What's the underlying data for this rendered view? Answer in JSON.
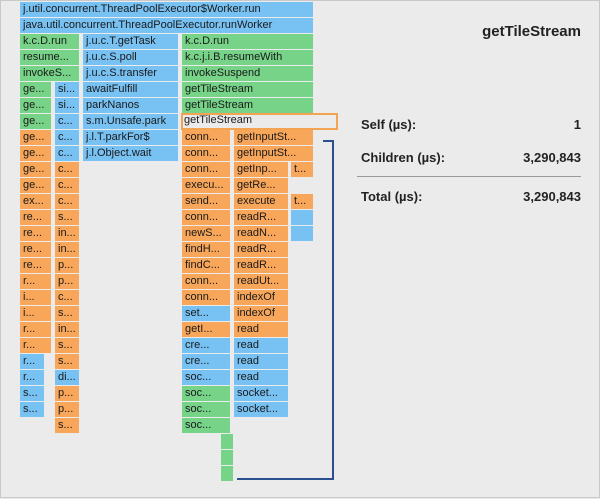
{
  "colors": {
    "blue": "#78c1f3",
    "green": "#76d388",
    "orange": "#f8a65a",
    "selected_border": "#f3a453",
    "bracket": "#2b4f8f"
  },
  "selected_function": "getTileStream",
  "stats": {
    "self_label": "Self  (µs):",
    "self_value": "1",
    "children_label": "Children (µs):",
    "children_value": "3,290,843",
    "total_label": "Total (µs):",
    "total_value": "3,290,843"
  },
  "flame_cells": [
    {
      "text": "j.util.concurrent.ThreadPoolExecutor$Worker.run",
      "color": "blue"
    },
    {
      "text": "java.util.concurrent.ThreadPoolExecutor.runWorker",
      "color": "blue"
    },
    {
      "text": "k.c.D.run",
      "color": "green"
    },
    {
      "text": "j.u.c.T.getTask",
      "color": "blue"
    },
    {
      "text": "k.c.D.run",
      "color": "green"
    },
    {
      "text": "resume...",
      "color": "green"
    },
    {
      "text": "j.u.c.S.poll",
      "color": "blue"
    },
    {
      "text": "k.c.j.i.B.resumeWith",
      "color": "green"
    },
    {
      "text": "invokeS...",
      "color": "green"
    },
    {
      "text": "j.u.c.S.transfer",
      "color": "blue"
    },
    {
      "text": "invokeSuspend",
      "color": "green"
    },
    {
      "text": "ge...",
      "color": "green"
    },
    {
      "text": "si...",
      "color": "blue"
    },
    {
      "text": "awaitFulfill",
      "color": "blue"
    },
    {
      "text": "getTileStream",
      "color": "green"
    },
    {
      "text": "ge...",
      "color": "green"
    },
    {
      "text": "si...",
      "color": "blue"
    },
    {
      "text": "parkNanos",
      "color": "blue"
    },
    {
      "text": "getTileStream",
      "color": "green"
    },
    {
      "text": "ge...",
      "color": "green"
    },
    {
      "text": "c...",
      "color": "blue"
    },
    {
      "text": "s.m.Unsafe.park",
      "color": "blue"
    },
    {
      "text": "getTileStream",
      "color": "green"
    },
    {
      "text": "ge...",
      "color": "orange"
    },
    {
      "text": "c...",
      "color": "blue"
    },
    {
      "text": "j.l.T.parkFor$",
      "color": "blue"
    },
    {
      "text": "conn...",
      "color": "orange"
    },
    {
      "text": "getInputSt...",
      "color": "orange"
    },
    {
      "text": "ge...",
      "color": "orange"
    },
    {
      "text": "c...",
      "color": "blue"
    },
    {
      "text": "j.l.Object.wait",
      "color": "blue"
    },
    {
      "text": "conn...",
      "color": "orange"
    },
    {
      "text": "getInputSt...",
      "color": "orange"
    },
    {
      "text": "ge...",
      "color": "orange"
    },
    {
      "text": "c...",
      "color": "orange"
    },
    {
      "text": "conn...",
      "color": "orange"
    },
    {
      "text": "getInp...",
      "color": "orange"
    },
    {
      "text": "t...",
      "color": "orange"
    },
    {
      "text": "ge...",
      "color": "orange"
    },
    {
      "text": "c...",
      "color": "orange"
    },
    {
      "text": "execu...",
      "color": "orange"
    },
    {
      "text": "getRe...",
      "color": "orange"
    },
    {
      "text": "ex...",
      "color": "orange"
    },
    {
      "text": "c...",
      "color": "orange"
    },
    {
      "text": "send...",
      "color": "orange"
    },
    {
      "text": "execute",
      "color": "orange"
    },
    {
      "text": "t...",
      "color": "orange"
    },
    {
      "text": "re...",
      "color": "orange"
    },
    {
      "text": "s...",
      "color": "orange"
    },
    {
      "text": "conn...",
      "color": "orange"
    },
    {
      "text": "readR...",
      "color": "orange"
    },
    {
      "text": "",
      "color": "blue"
    },
    {
      "text": "re...",
      "color": "orange"
    },
    {
      "text": "in...",
      "color": "orange"
    },
    {
      "text": "newS...",
      "color": "orange"
    },
    {
      "text": "readN...",
      "color": "orange"
    },
    {
      "text": "",
      "color": "blue"
    },
    {
      "text": "re...",
      "color": "orange"
    },
    {
      "text": "in...",
      "color": "orange"
    },
    {
      "text": "findH...",
      "color": "orange"
    },
    {
      "text": "readR...",
      "color": "orange"
    },
    {
      "text": "re...",
      "color": "orange"
    },
    {
      "text": "p...",
      "color": "orange"
    },
    {
      "text": "findC...",
      "color": "orange"
    },
    {
      "text": "readR...",
      "color": "orange"
    },
    {
      "text": "r...",
      "color": "orange"
    },
    {
      "text": "p...",
      "color": "orange"
    },
    {
      "text": "conn...",
      "color": "orange"
    },
    {
      "text": "readUt...",
      "color": "orange"
    },
    {
      "text": "i...",
      "color": "orange"
    },
    {
      "text": "c...",
      "color": "orange"
    },
    {
      "text": "conn...",
      "color": "orange"
    },
    {
      "text": "indexOf",
      "color": "orange"
    },
    {
      "text": "i...",
      "color": "orange"
    },
    {
      "text": "s...",
      "color": "orange"
    },
    {
      "text": "set...",
      "color": "blue"
    },
    {
      "text": "indexOf",
      "color": "orange"
    },
    {
      "text": "r...",
      "color": "orange"
    },
    {
      "text": "in...",
      "color": "orange"
    },
    {
      "text": "getI...",
      "color": "orange"
    },
    {
      "text": "read",
      "color": "orange"
    },
    {
      "text": "r...",
      "color": "orange"
    },
    {
      "text": "s...",
      "color": "orange"
    },
    {
      "text": "cre...",
      "color": "blue"
    },
    {
      "text": "read",
      "color": "blue"
    },
    {
      "text": "r...",
      "color": "blue"
    },
    {
      "text": "s...",
      "color": "orange"
    },
    {
      "text": "cre...",
      "color": "blue"
    },
    {
      "text": "read",
      "color": "blue"
    },
    {
      "text": "r...",
      "color": "blue"
    },
    {
      "text": "di...",
      "color": "blue"
    },
    {
      "text": "soc...",
      "color": "blue"
    },
    {
      "text": "read",
      "color": "blue"
    },
    {
      "text": "s...",
      "color": "blue"
    },
    {
      "text": "p...",
      "color": "orange"
    },
    {
      "text": "soc...",
      "color": "green"
    },
    {
      "text": "socket...",
      "color": "blue"
    },
    {
      "text": "s...",
      "color": "blue"
    },
    {
      "text": "p...",
      "color": "orange"
    },
    {
      "text": "soc...",
      "color": "green"
    },
    {
      "text": "socket...",
      "color": "blue"
    },
    {
      "text": "s...",
      "color": "orange"
    },
    {
      "text": "soc...",
      "color": "green"
    },
    {
      "text": "",
      "color": "green"
    },
    {
      "text": "",
      "color": "green"
    },
    {
      "text": "",
      "color": "green"
    }
  ]
}
